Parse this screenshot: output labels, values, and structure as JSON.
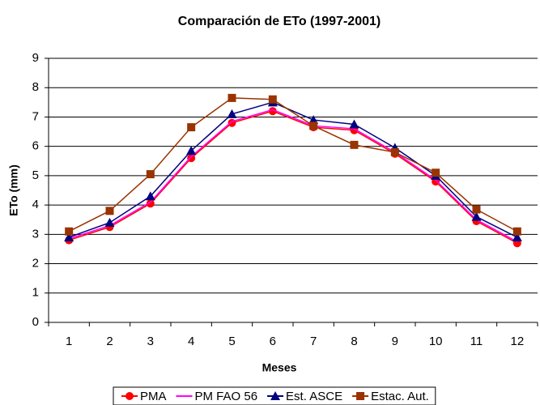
{
  "chart_data": {
    "type": "line",
    "title": "Comparación de ETo (1997-2001)",
    "x_label": "Meses",
    "y_label": "ETo (mm)",
    "categories": [
      1,
      2,
      3,
      4,
      5,
      6,
      7,
      8,
      9,
      10,
      11,
      12
    ],
    "series": [
      {
        "name": "PMA",
        "color": "#ff0000",
        "marker": "circle",
        "values": [
          2.8,
          3.25,
          4.05,
          5.6,
          6.8,
          7.2,
          6.65,
          6.55,
          5.75,
          4.8,
          3.45,
          2.7
        ]
      },
      {
        "name": "PM FAO 56",
        "color": "#ff00ff",
        "marker": "none",
        "values": [
          2.85,
          3.3,
          4.1,
          5.65,
          6.85,
          7.25,
          6.7,
          6.6,
          5.8,
          4.85,
          3.5,
          2.75
        ]
      },
      {
        "name": "Est. ASCE",
        "color": "#000080",
        "marker": "triangle",
        "values": [
          2.9,
          3.4,
          4.3,
          5.85,
          7.1,
          7.5,
          6.9,
          6.75,
          5.95,
          5.0,
          3.6,
          2.9
        ]
      },
      {
        "name": "Estac. Aut.",
        "color": "#993300",
        "marker": "square",
        "values": [
          3.1,
          3.8,
          5.05,
          6.65,
          7.65,
          7.6,
          6.7,
          6.05,
          5.8,
          5.1,
          3.85,
          3.1
        ]
      }
    ],
    "ylim": [
      0,
      9
    ],
    "yticks": [
      0,
      1,
      2,
      3,
      4,
      5,
      6,
      7,
      8,
      9
    ],
    "grid": true,
    "legend": "bottom"
  }
}
